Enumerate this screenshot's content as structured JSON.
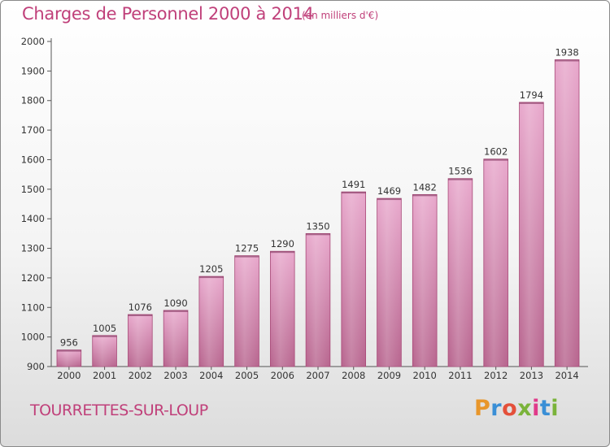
{
  "header": {
    "title": "Charges de Personnel 2000 à 2014",
    "subtitle": "(en milliers d'€)"
  },
  "footer": {
    "location": "TOURRETTES-SUR-LOUP",
    "brand_letters": [
      "P",
      "r",
      "o",
      "x",
      "i",
      "t",
      "i"
    ],
    "brand_colors": [
      "#e8962a",
      "#3a8fd6",
      "#e4503a",
      "#7ab33a",
      "#e03a8a",
      "#3a8fd6",
      "#7ab33a"
    ]
  },
  "chart_data": {
    "type": "bar",
    "categories": [
      "2000",
      "2001",
      "2002",
      "2003",
      "2004",
      "2005",
      "2006",
      "2007",
      "2008",
      "2009",
      "2010",
      "2011",
      "2012",
      "2013",
      "2014"
    ],
    "values": [
      956,
      1005,
      1076,
      1090,
      1205,
      1275,
      1290,
      1350,
      1491,
      1469,
      1482,
      1536,
      1602,
      1794,
      1938
    ],
    "ylim": [
      900,
      2000
    ],
    "yticks": [
      900,
      1000,
      1100,
      1200,
      1300,
      1400,
      1500,
      1600,
      1700,
      1800,
      1900,
      2000
    ],
    "grid": false,
    "bar_color_top": "#e8a8cc",
    "bar_color_bottom": "#b8668f",
    "bar_edge_color": "#a84a78"
  }
}
